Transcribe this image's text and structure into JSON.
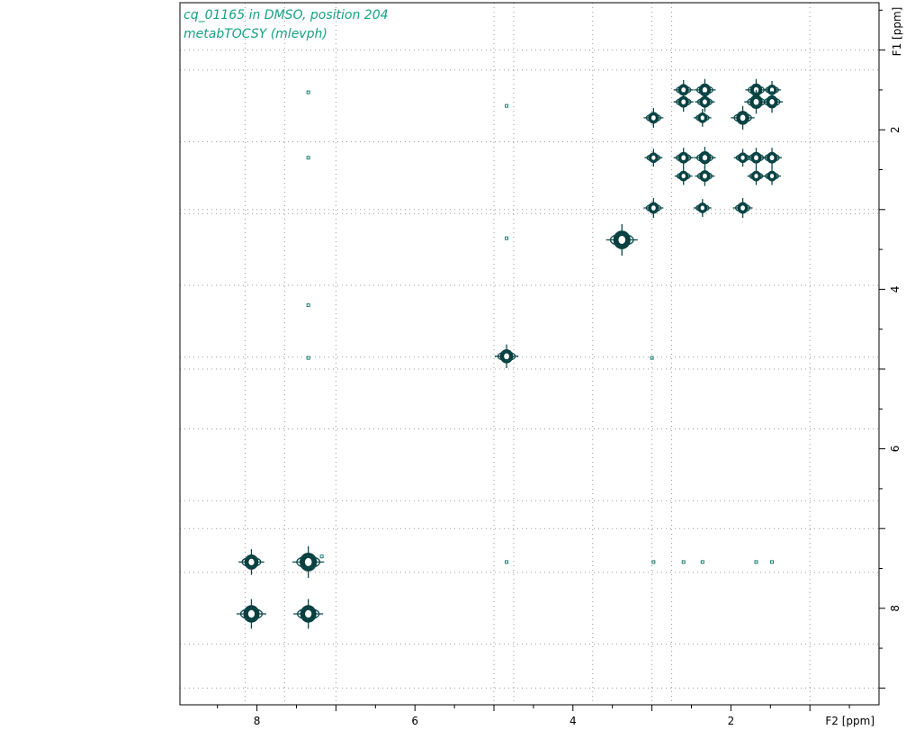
{
  "header": {
    "title_line1": "cq_01165 in DMSO, position 204",
    "title_line2": "metabTOCSY (mlevph)"
  },
  "chart_data": {
    "type": "contour",
    "title": "cq_01165 in DMSO, position 204",
    "subtitle": "metabTOCSY (mlevph)",
    "xlabel": "F2 [ppm]",
    "ylabel": "F1 [ppm]",
    "xlim": [
      9.0,
      0.0
    ],
    "ylim": [
      0.0,
      9.3
    ],
    "x_reversed": true,
    "y_reversed": true,
    "x_major_ticks": [
      8,
      6,
      4,
      2
    ],
    "y_major_ticks": [
      2,
      4,
      6,
      8
    ],
    "grid": true,
    "colors": {
      "contour": "#0b4a4a",
      "title": "#17a085",
      "grid": "#9a9a9a"
    },
    "peaks": [
      {
        "x": 2.6,
        "y": 1.5,
        "size": 1.0
      },
      {
        "x": 2.33,
        "y": 1.5,
        "size": 1.1
      },
      {
        "x": 1.68,
        "y": 1.5,
        "size": 1.1
      },
      {
        "x": 1.48,
        "y": 1.5,
        "size": 0.9
      },
      {
        "x": 2.6,
        "y": 1.65,
        "size": 1.0
      },
      {
        "x": 2.33,
        "y": 1.65,
        "size": 1.0
      },
      {
        "x": 1.68,
        "y": 1.65,
        "size": 1.2
      },
      {
        "x": 1.48,
        "y": 1.65,
        "size": 1.1
      },
      {
        "x": 2.98,
        "y": 1.85,
        "size": 1.0
      },
      {
        "x": 2.36,
        "y": 1.85,
        "size": 0.9
      },
      {
        "x": 1.85,
        "y": 1.85,
        "size": 1.2
      },
      {
        "x": 2.98,
        "y": 2.35,
        "size": 0.9
      },
      {
        "x": 2.6,
        "y": 2.35,
        "size": 1.0
      },
      {
        "x": 2.33,
        "y": 2.35,
        "size": 1.1
      },
      {
        "x": 1.85,
        "y": 2.35,
        "size": 0.9
      },
      {
        "x": 1.68,
        "y": 2.35,
        "size": 1.0
      },
      {
        "x": 1.48,
        "y": 2.35,
        "size": 1.0
      },
      {
        "x": 2.6,
        "y": 2.58,
        "size": 0.9
      },
      {
        "x": 2.33,
        "y": 2.58,
        "size": 1.0
      },
      {
        "x": 1.68,
        "y": 2.58,
        "size": 0.9
      },
      {
        "x": 1.48,
        "y": 2.58,
        "size": 0.9
      },
      {
        "x": 2.98,
        "y": 2.98,
        "size": 1.0
      },
      {
        "x": 2.36,
        "y": 2.98,
        "size": 0.9
      },
      {
        "x": 1.85,
        "y": 2.98,
        "size": 1.0
      },
      {
        "x": 3.38,
        "y": 3.38,
        "size": 1.6
      },
      {
        "x": 4.84,
        "y": 4.84,
        "size": 1.2
      },
      {
        "x": 8.07,
        "y": 7.42,
        "size": 1.3
      },
      {
        "x": 7.35,
        "y": 7.42,
        "size": 1.6
      },
      {
        "x": 8.07,
        "y": 8.07,
        "size": 1.5
      },
      {
        "x": 7.35,
        "y": 8.07,
        "size": 1.5
      }
    ],
    "weak_peaks": [
      {
        "x": 7.35,
        "y": 1.53
      },
      {
        "x": 7.35,
        "y": 2.35
      },
      {
        "x": 7.35,
        "y": 4.2
      },
      {
        "x": 7.35,
        "y": 4.86
      },
      {
        "x": 4.84,
        "y": 1.7
      },
      {
        "x": 4.84,
        "y": 3.36
      },
      {
        "x": 4.84,
        "y": 7.42
      },
      {
        "x": 3.0,
        "y": 4.86
      },
      {
        "x": 2.98,
        "y": 7.42
      },
      {
        "x": 2.6,
        "y": 7.42
      },
      {
        "x": 2.36,
        "y": 7.42
      },
      {
        "x": 1.68,
        "y": 7.42
      },
      {
        "x": 1.48,
        "y": 7.42
      },
      {
        "x": 7.18,
        "y": 7.35
      }
    ]
  }
}
